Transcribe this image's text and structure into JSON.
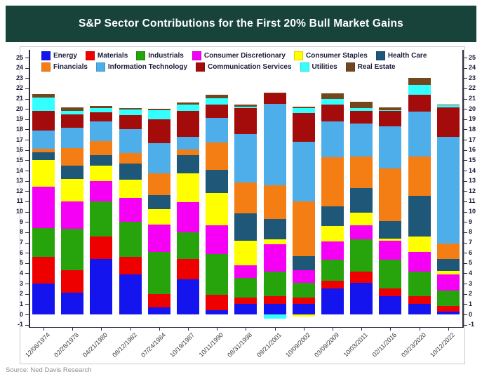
{
  "title": "S&P Sector Contributions for the First 20% Bull Market Gains",
  "source": "Source: Ned Davis Research",
  "colors": {
    "title_bar_bg": "#17433B",
    "title_text": "#FFFFFF",
    "card_border": "#C9C9C9",
    "axis": "#2A2A3C",
    "tick_label": "#1B1B3A"
  },
  "chart_data": {
    "type": "bar",
    "stacked": true,
    "title": "S&P Sector Contributions for the First 20% Bull Market Gains",
    "xlabel": "",
    "ylabel": "",
    "ylim": [
      -1,
      25
    ],
    "y_tick_step": 1,
    "grid": false,
    "legend_position": "top-inside",
    "categories": [
      "12/06/1974",
      "02/28/1978",
      "04/21/1980",
      "08/12/1982",
      "07/24/1984",
      "10/19/1987",
      "10/11/1990",
      "08/31/1998",
      "09/21/2001",
      "10/09/2002",
      "03/09/2009",
      "10/03/2011",
      "02/11/2016",
      "03/23/2020",
      "10/12/2022"
    ],
    "series": [
      {
        "name": "Energy",
        "color": "#1414EE",
        "values": [
          3.0,
          2.1,
          5.4,
          3.9,
          0.65,
          3.4,
          0.4,
          1.0,
          1.05,
          1.0,
          2.5,
          3.1,
          1.8,
          1.0,
          0.25
        ]
      },
      {
        "name": "Materials",
        "color": "#EE0000",
        "values": [
          2.6,
          2.2,
          2.2,
          1.7,
          1.3,
          2.0,
          1.5,
          0.65,
          0.75,
          0.65,
          0.8,
          1.1,
          0.7,
          0.8,
          0.55
        ]
      },
      {
        "name": "Industrials",
        "color": "#27A30B",
        "values": [
          2.8,
          4.0,
          3.4,
          3.4,
          4.1,
          2.6,
          4.0,
          1.9,
          2.4,
          1.45,
          2.0,
          3.1,
          2.8,
          2.4,
          1.5
        ]
      },
      {
        "name": "Consumer Discretionary",
        "color": "#F500F5",
        "values": [
          4.0,
          2.7,
          2.0,
          2.35,
          2.7,
          2.9,
          2.8,
          1.25,
          2.6,
          1.2,
          1.8,
          1.4,
          1.9,
          1.85,
          1.6
        ]
      },
      {
        "name": "Consumer Staples",
        "color": "#FFFF00",
        "values": [
          2.6,
          2.2,
          1.5,
          1.75,
          1.5,
          2.8,
          3.15,
          2.35,
          0.5,
          -0.2,
          1.5,
          1.2,
          0.2,
          1.5,
          0.35
        ]
      },
      {
        "name": "Health Care",
        "color": "#1E5777",
        "values": [
          0.8,
          1.3,
          1.0,
          1.6,
          1.35,
          1.8,
          2.2,
          2.7,
          2.0,
          1.35,
          1.9,
          2.4,
          1.7,
          4.0,
          1.15
        ]
      },
      {
        "name": "Financials",
        "color": "#F57E14",
        "values": [
          0.3,
          1.7,
          1.4,
          1.0,
          2.1,
          0.55,
          2.7,
          3.0,
          3.3,
          5.35,
          4.8,
          3.1,
          5.1,
          3.8,
          1.5
        ]
      },
      {
        "name": "Information Technology",
        "color": "#4DAEEA",
        "values": [
          1.8,
          2.0,
          1.9,
          2.3,
          3.0,
          1.2,
          2.4,
          4.7,
          7.9,
          5.8,
          3.5,
          3.2,
          4.1,
          4.4,
          10.35
        ]
      },
      {
        "name": "Communication Services",
        "color": "#A40B0B",
        "values": [
          1.9,
          1.3,
          0.9,
          1.4,
          2.3,
          2.55,
          1.3,
          2.5,
          1.0,
          2.8,
          1.6,
          1.2,
          1.5,
          1.6,
          2.9
        ]
      },
      {
        "name": "Utilities",
        "color": "#33FFFF",
        "values": [
          1.3,
          0.3,
          0.4,
          0.55,
          0.85,
          0.65,
          0.6,
          0.2,
          -0.4,
          0.5,
          0.6,
          0.3,
          0.1,
          1.0,
          0.2
        ]
      },
      {
        "name": "Real Estate",
        "color": "#74461D",
        "values": [
          0.35,
          0.35,
          0.2,
          0.15,
          0.15,
          0.2,
          0.3,
          0.15,
          0.1,
          0.1,
          0.55,
          0.6,
          0.25,
          0.7,
          0.1
        ]
      }
    ]
  }
}
